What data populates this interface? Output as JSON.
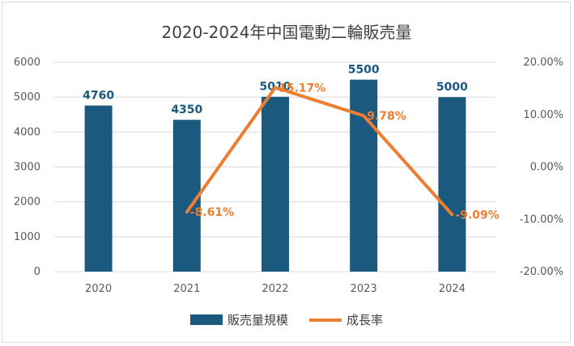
{
  "chart_data": {
    "type": "bar+line",
    "title": "2020-2024年中国電動二輪販売量",
    "categories": [
      "2020",
      "2021",
      "2022",
      "2023",
      "2024"
    ],
    "series": [
      {
        "name": "販売量規模",
        "type": "bar",
        "axis": "left",
        "values": [
          4760,
          4350,
          5010,
          5500,
          5000
        ],
        "labels": [
          "4760",
          "4350",
          "5010",
          "5500",
          "5000"
        ],
        "color": "#1b5a7e"
      },
      {
        "name": "成長率",
        "type": "line",
        "axis": "right",
        "values": [
          null,
          -8.61,
          15.17,
          9.78,
          -9.09
        ],
        "labels": [
          "",
          "-8.61%",
          "15.17%",
          "9.78%",
          "-9.09%"
        ],
        "color": "#ed7d31"
      }
    ],
    "y_left": {
      "min": 0,
      "max": 6000,
      "ticks": [
        "0",
        "1000",
        "2000",
        "3000",
        "4000",
        "5000",
        "6000"
      ]
    },
    "y_right": {
      "min": -20,
      "max": 20,
      "ticks": [
        "-20.00%",
        "-10.00%",
        "0.00%",
        "10.00%",
        "20.00%"
      ]
    },
    "grid": true,
    "legend_position": "bottom"
  }
}
